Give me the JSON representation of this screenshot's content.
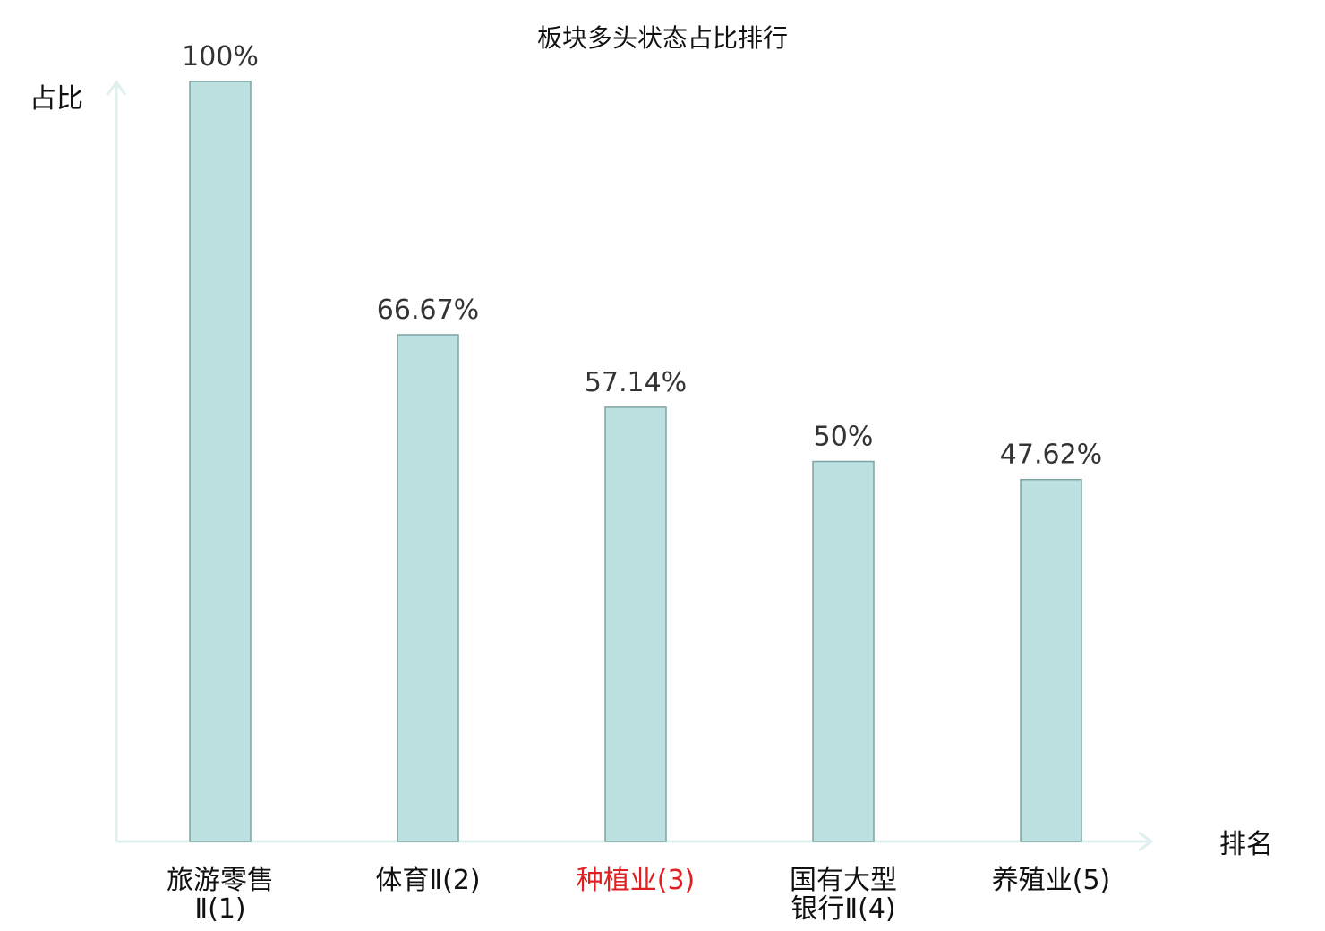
{
  "chart_data": {
    "type": "bar",
    "title": "板块多头状态占比排行",
    "ylabel": "占比",
    "xlabel": "排名",
    "ylim": [
      0,
      100
    ],
    "grid": false,
    "categories": [
      {
        "lines": [
          "旅游零售",
          "Ⅱ(1)"
        ],
        "highlight": false
      },
      {
        "lines": [
          "体育Ⅱ(2)"
        ],
        "highlight": false
      },
      {
        "lines": [
          "种植业(3)"
        ],
        "highlight": true
      },
      {
        "lines": [
          "国有大型",
          "银行Ⅱ(4)"
        ],
        "highlight": false
      },
      {
        "lines": [
          "养殖业(5)"
        ],
        "highlight": false
      }
    ],
    "values": [
      100,
      66.67,
      57.14,
      50,
      47.62
    ],
    "value_labels": [
      "100%",
      "66.67%",
      "57.14%",
      "50%",
      "47.62%"
    ]
  },
  "colors": {
    "bar_fill": "#bde0e1",
    "bar_stroke": "#7fa3a3",
    "axis": "#dff1ef",
    "label_highlight": "#e02020",
    "label_normal": "#111111",
    "label_suffix": "#555555"
  }
}
